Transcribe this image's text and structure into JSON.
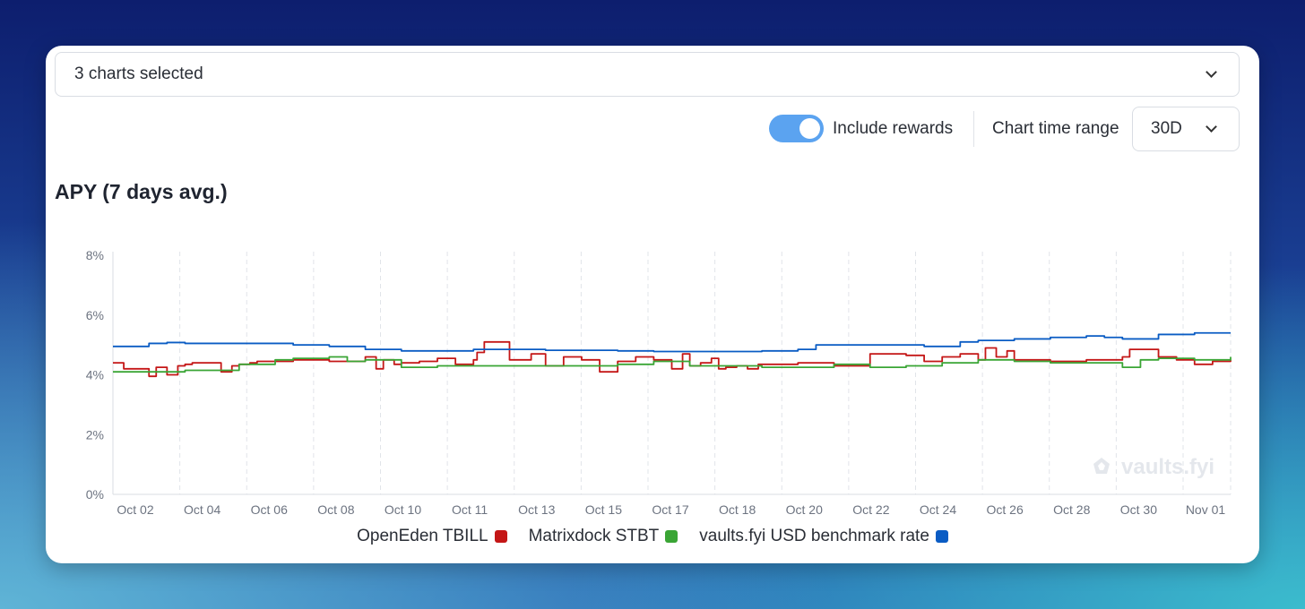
{
  "selector": {
    "label": "3 charts selected"
  },
  "controls": {
    "rewards_label": "Include rewards",
    "rewards_on": true,
    "range_label": "Chart time range",
    "range_value": "30D"
  },
  "chart_title": "APY (7 days avg.)",
  "watermark": "vaults.fyi",
  "colors": {
    "tbill": "#c41616",
    "stbt": "#3aa535",
    "benchmark": "#0a5cc4"
  },
  "chart_data": {
    "type": "line",
    "title": "APY (7 days avg.)",
    "x_start": "Oct 01",
    "x_end": "Nov 01",
    "x_tick_labels": [
      "Oct 02",
      "Oct 04",
      "Oct 06",
      "Oct 08",
      "Oct 10",
      "Oct 11",
      "Oct 13",
      "Oct 15",
      "Oct 17",
      "Oct 18",
      "Oct 20",
      "Oct 22",
      "Oct 24",
      "Oct 26",
      "Oct 28",
      "Oct 30",
      "Nov 01"
    ],
    "y_ticks": [
      0,
      2,
      4,
      6,
      8
    ],
    "y_tick_labels": [
      "0%",
      "2%",
      "4%",
      "6%",
      "8%"
    ],
    "ylim": [
      0,
      8
    ],
    "grid": "vertical dashed",
    "legend_position": "bottom",
    "series": [
      {
        "name": "OpenEden TBILL",
        "color": "#c41616",
        "x": [
          0.0,
          0.3,
          0.8,
          1.0,
          1.2,
          1.5,
          1.8,
          2.0,
          2.2,
          3.0,
          3.3,
          3.5,
          3.8,
          4.0,
          5.0,
          6.0,
          7.0,
          7.3,
          7.5,
          7.8,
          8.0,
          8.5,
          9.0,
          9.5,
          10.0,
          10.1,
          10.3,
          10.5,
          11.0,
          11.4,
          11.6,
          12.0,
          12.5,
          13.0,
          13.5,
          14.0,
          14.5,
          15.0,
          15.5,
          15.8,
          16.0,
          16.3,
          16.6,
          16.8,
          17.0,
          17.3,
          17.6,
          17.9,
          18.0,
          19.0,
          20.0,
          21.0,
          22.0,
          22.5,
          23.0,
          23.5,
          24.0,
          24.2,
          24.5,
          24.8,
          25.0,
          25.5,
          26.0,
          26.5,
          27.0,
          28.0,
          28.2,
          29.0,
          29.5,
          30.0,
          30.5,
          31.0
        ],
        "y": [
          4.4,
          4.2,
          4.2,
          3.95,
          4.25,
          4.0,
          4.3,
          4.35,
          4.4,
          4.1,
          4.3,
          4.35,
          4.4,
          4.45,
          4.5,
          4.45,
          4.6,
          4.2,
          4.5,
          4.35,
          4.4,
          4.45,
          4.55,
          4.35,
          4.5,
          4.75,
          5.1,
          5.1,
          4.5,
          4.5,
          4.7,
          4.3,
          4.6,
          4.5,
          4.1,
          4.45,
          4.6,
          4.5,
          4.2,
          4.7,
          4.3,
          4.4,
          4.55,
          4.2,
          4.25,
          4.3,
          4.2,
          4.35,
          4.35,
          4.4,
          4.3,
          4.7,
          4.65,
          4.45,
          4.6,
          4.7,
          4.5,
          4.9,
          4.6,
          4.8,
          4.5,
          4.5,
          4.45,
          4.45,
          4.5,
          4.6,
          4.85,
          4.6,
          4.5,
          4.35,
          4.45,
          4.5
        ]
      },
      {
        "name": "Matrixdock STBT",
        "color": "#3aa535",
        "x": [
          0,
          1,
          2,
          3,
          3.5,
          4,
          4.5,
          5,
          5.5,
          6,
          6.5,
          7,
          8,
          9,
          10,
          11,
          12,
          13,
          14,
          15,
          16,
          17,
          18,
          19,
          20,
          21,
          21.5,
          22,
          23,
          24,
          25,
          26,
          27,
          28,
          28.5,
          29,
          30,
          31
        ],
        "y": [
          4.1,
          4.1,
          4.15,
          4.15,
          4.35,
          4.35,
          4.5,
          4.55,
          4.55,
          4.6,
          4.45,
          4.5,
          4.25,
          4.3,
          4.3,
          4.3,
          4.3,
          4.3,
          4.35,
          4.45,
          4.3,
          4.3,
          4.25,
          4.25,
          4.35,
          4.25,
          4.25,
          4.3,
          4.4,
          4.5,
          4.45,
          4.4,
          4.4,
          4.25,
          4.5,
          4.55,
          4.5,
          4.6
        ]
      },
      {
        "name": "vaults.fyi USD benchmark rate",
        "color": "#0a5cc4",
        "x": [
          0,
          1,
          1.5,
          2,
          3,
          4,
          5,
          6,
          7,
          8,
          9,
          10,
          11,
          12,
          13,
          14,
          15,
          16,
          17,
          18,
          19,
          19.5,
          20,
          21,
          22,
          22.5,
          23,
          23.5,
          24,
          25,
          26,
          27,
          27.5,
          28,
          29,
          30,
          31
        ],
        "y": [
          4.95,
          5.05,
          5.08,
          5.05,
          5.05,
          5.05,
          5.0,
          4.95,
          4.85,
          4.8,
          4.8,
          4.85,
          4.85,
          4.82,
          4.82,
          4.8,
          4.78,
          4.78,
          4.78,
          4.8,
          4.85,
          5.0,
          5.0,
          5.0,
          5.0,
          4.95,
          4.95,
          5.1,
          5.15,
          5.2,
          5.25,
          5.3,
          5.25,
          5.2,
          5.35,
          5.4,
          5.4
        ]
      }
    ]
  }
}
